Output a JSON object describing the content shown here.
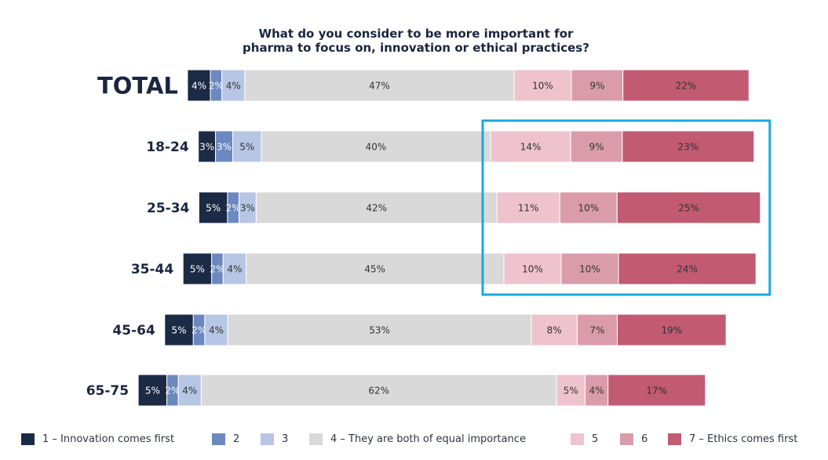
{
  "chart_data": {
    "type": "bar",
    "orientation": "horizontal",
    "stacked": true,
    "title": [
      "What do you consider to be more important for",
      "pharma to focus on, innovation or ethical practices?"
    ],
    "categories": [
      "TOTAL",
      "18-24",
      "25-34",
      "35-44",
      "45-64",
      "65-75"
    ],
    "series": [
      {
        "name": "1 – Innovation comes first",
        "color": "#1b2a45",
        "label_color": "#ffffff",
        "values": [
          4,
          3,
          5,
          5,
          5,
          5
        ]
      },
      {
        "name": "2",
        "color": "#6b88c0",
        "label_color": "#ffffff",
        "values": [
          2,
          3,
          2,
          2,
          2,
          2
        ]
      },
      {
        "name": "3",
        "color": "#b7c6e4",
        "label_color": "#333333",
        "values": [
          4,
          5,
          3,
          4,
          4,
          4
        ]
      },
      {
        "name": "4 – They are both of equal importance",
        "color": "#d9d9d9",
        "label_color": "#333333",
        "values": [
          47,
          40,
          42,
          45,
          53,
          62
        ]
      },
      {
        "name": "5",
        "color": "#efc3cd",
        "label_color": "#333333",
        "values": [
          10,
          14,
          11,
          10,
          8,
          5
        ]
      },
      {
        "name": "6",
        "color": "#da9cab",
        "label_color": "#333333",
        "values": [
          9,
          9,
          10,
          10,
          7,
          4
        ]
      },
      {
        "name": "7 – Ethics comes first",
        "color": "#c25a72",
        "label_color": "#333333",
        "values": [
          22,
          23,
          25,
          24,
          19,
          17
        ]
      }
    ],
    "value_suffix": "%",
    "highlight": {
      "categories": [
        "18-24",
        "25-34",
        "35-44"
      ],
      "series": [
        "5",
        "6",
        "7 – Ethics comes first"
      ],
      "color": "#1aa7e0"
    },
    "legend_position": "bottom"
  }
}
